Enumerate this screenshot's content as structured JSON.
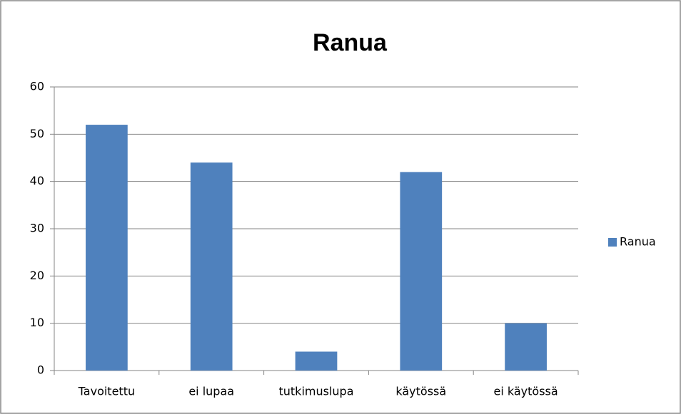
{
  "chart_data": {
    "type": "bar",
    "title": "Ranua",
    "categories": [
      "Tavoitettu",
      "ei lupaa",
      "tutkimuslupa",
      "käytössä",
      "ei käytössä"
    ],
    "series": [
      {
        "name": "Ranua",
        "color": "#4f81bd",
        "values": [
          52,
          44,
          4,
          42,
          10
        ]
      }
    ],
    "ylim": [
      0,
      60
    ],
    "yticks": [
      0,
      10,
      20,
      30,
      40,
      50,
      60
    ],
    "grid": true,
    "legend": "right"
  }
}
